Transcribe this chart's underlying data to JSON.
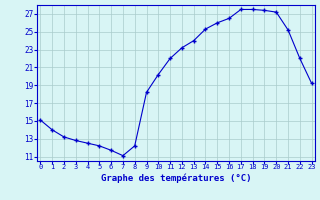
{
  "hours": [
    0,
    1,
    2,
    3,
    4,
    5,
    6,
    7,
    8,
    9,
    10,
    11,
    12,
    13,
    14,
    15,
    16,
    17,
    18,
    19,
    20,
    21,
    22,
    23
  ],
  "temps": [
    15.1,
    14.0,
    13.2,
    12.8,
    12.5,
    12.2,
    11.7,
    11.1,
    12.2,
    18.2,
    20.2,
    22.0,
    23.2,
    24.0,
    25.3,
    26.0,
    26.5,
    27.5,
    27.5,
    27.4,
    27.2,
    25.2,
    22.0,
    19.2
  ],
  "line_color": "#0000cc",
  "marker": "+",
  "marker_color": "#0000cc",
  "bg_color": "#d8f5f5",
  "grid_color": "#aacccc",
  "axis_label_color": "#0000cc",
  "tick_label_color": "#0000cc",
  "xlabel": "Graphe des températures (°C)",
  "xlabel_color": "#0000cc",
  "ylim": [
    10.5,
    28.0
  ],
  "yticks": [
    11,
    13,
    15,
    17,
    19,
    21,
    23,
    25,
    27
  ],
  "xlim": [
    -0.3,
    23.3
  ]
}
